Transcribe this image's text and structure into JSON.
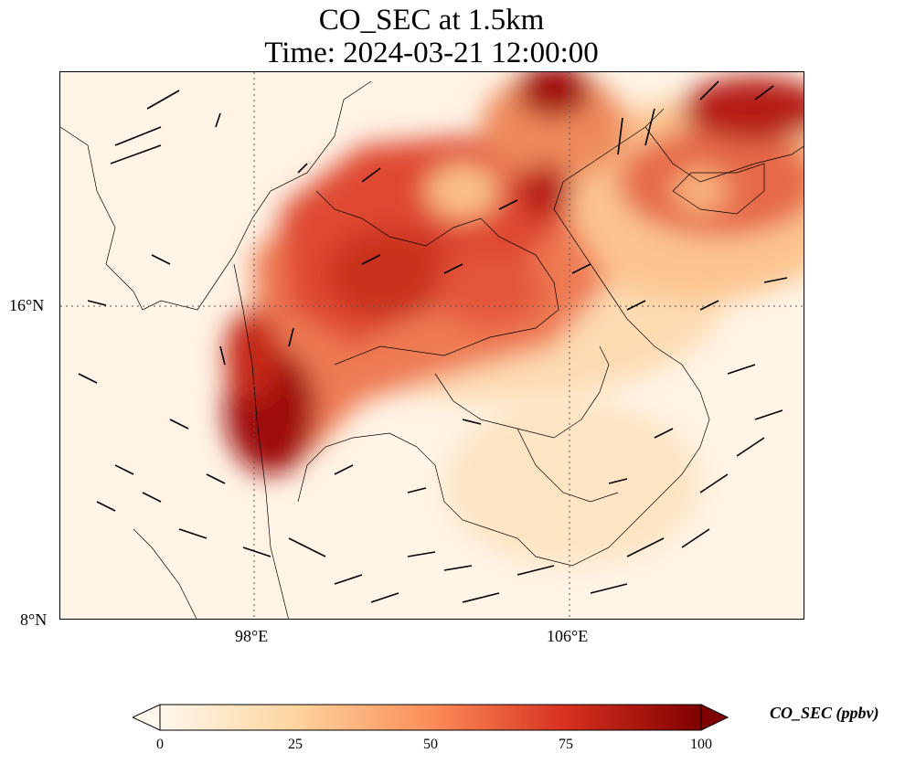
{
  "title": "CO_SEC at 1.5km",
  "subtitle": "Time: 2024-03-21 12:00:00",
  "axes": {
    "lat_ticks": [
      "16°N",
      "8°N"
    ],
    "lon_ticks": [
      "98°E",
      "106°E"
    ],
    "lon_range_deg": [
      93,
      112
    ],
    "lat_range_deg": [
      8,
      22
    ],
    "gridlines": "dotted"
  },
  "colorbar": {
    "label": "CO_SEC (ppbv)",
    "ticks": [
      "0",
      "25",
      "50",
      "75",
      "100"
    ],
    "range": [
      0,
      100
    ],
    "extend": "both",
    "colormap": "OrRd",
    "colors": [
      "#fff7ec",
      "#fdd49e",
      "#fc8d59",
      "#d7301f",
      "#7f0000"
    ]
  },
  "field": {
    "variable": "CO_SEC",
    "units": "ppbv",
    "level": "1.5km",
    "overlay": "wind vectors"
  }
}
